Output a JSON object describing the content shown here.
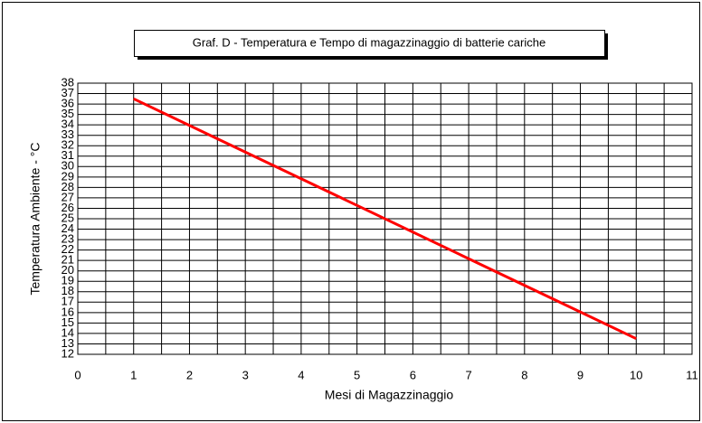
{
  "chart_data": {
    "type": "line",
    "title": "Graf. D - Temperatura e Tempo di magazzinaggio di batterie cariche",
    "xlabel": "Mesi di Magazzinaggio",
    "ylabel": "Temperatura Ambiente - °C",
    "x": [
      1,
      10
    ],
    "series": [
      {
        "name": "Temperatura",
        "color": "#ff0000",
        "values": [
          36.5,
          13.5
        ]
      }
    ],
    "xlim": [
      0,
      11
    ],
    "xticks": [
      0,
      1,
      2,
      3,
      4,
      5,
      6,
      7,
      8,
      9,
      10,
      11
    ],
    "ylim": [
      12,
      38
    ],
    "yticks": [
      12,
      13,
      14,
      15,
      16,
      17,
      18,
      19,
      20,
      21,
      22,
      23,
      24,
      25,
      26,
      27,
      28,
      29,
      30,
      31,
      32,
      33,
      34,
      35,
      36,
      37,
      38
    ],
    "grid": true
  }
}
